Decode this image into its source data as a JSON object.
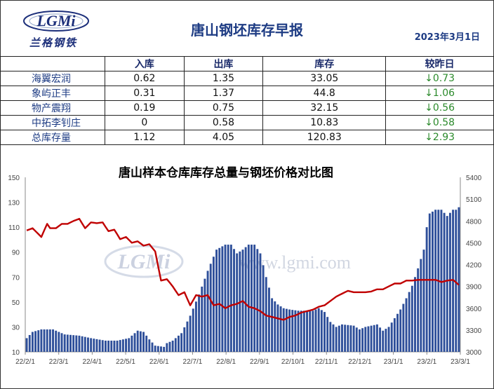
{
  "header": {
    "logo_word": "LGMi",
    "logo_text": "兰格钢铁",
    "title": "唐山钢坯库存早报",
    "date": "2023年3月1日"
  },
  "table": {
    "columns": [
      "入库",
      "出库",
      "库存",
      "较昨日"
    ],
    "rows": [
      {
        "name": "海翼宏润",
        "in": "0.62",
        "out": "1.35",
        "stock": "33.05",
        "change": "↓0.73"
      },
      {
        "name": "象屿正丰",
        "in": "0.31",
        "out": "1.37",
        "stock": "44.8",
        "change": "↓1.06"
      },
      {
        "name": "物产震翔",
        "in": "0.19",
        "out": "0.75",
        "stock": "32.15",
        "change": "↓0.56"
      },
      {
        "name": "中拓李钊庄",
        "in": "0",
        "out": "0.58",
        "stock": "10.83",
        "change": "↓0.58"
      },
      {
        "name": "总库存量",
        "in": "1.12",
        "out": "4.05",
        "stock": "120.83",
        "change": "↓2.93"
      }
    ]
  },
  "watermark": "www.lgmi.com",
  "colors": {
    "bar": "#2e4f9a",
    "line": "#c00000",
    "title": "#1e3c84",
    "change": "#2b8a2b"
  },
  "chart_data": {
    "type": "bar",
    "title": "唐山样本仓库库存总量与钢坯价格对比图",
    "left_axis": {
      "ylim": [
        10,
        150
      ],
      "ticks": [
        10,
        30,
        50,
        70,
        90,
        110,
        130,
        150
      ]
    },
    "right_axis": {
      "ylim": [
        3000,
        5400
      ],
      "ticks": [
        3000,
        3300,
        3600,
        3900,
        4200,
        4500,
        4800,
        5100,
        5400
      ]
    },
    "x_ticks": [
      "22/2/1",
      "22/3/1",
      "22/4/1",
      "22/5/1",
      "22/6/1",
      "22/7/1",
      "22/8/1",
      "22/9/1",
      "22/10/1",
      "22/11/1",
      "22/12/1",
      "23/1/1",
      "23/2/1",
      "23/3/1"
    ],
    "inventory_keypoints": [
      [
        0,
        21
      ],
      [
        2,
        26
      ],
      [
        5,
        28
      ],
      [
        9,
        28
      ],
      [
        13,
        24
      ],
      [
        18,
        23
      ],
      [
        22,
        21
      ],
      [
        27,
        19
      ],
      [
        31,
        19
      ],
      [
        35,
        21
      ],
      [
        38,
        27
      ],
      [
        40,
        26
      ],
      [
        42,
        20
      ],
      [
        44,
        15
      ],
      [
        47,
        14
      ],
      [
        48,
        17
      ],
      [
        50,
        19
      ],
      [
        53,
        25
      ],
      [
        56,
        39
      ],
      [
        59,
        56
      ],
      [
        62,
        75
      ],
      [
        65,
        92
      ],
      [
        68,
        96
      ],
      [
        70,
        96
      ],
      [
        72,
        89
      ],
      [
        74,
        92
      ],
      [
        76,
        96
      ],
      [
        78,
        96
      ],
      [
        80,
        89
      ],
      [
        82,
        70
      ],
      [
        84,
        53
      ],
      [
        86,
        48
      ],
      [
        88,
        45
      ],
      [
        90,
        44
      ],
      [
        93,
        43
      ],
      [
        98,
        43
      ],
      [
        100,
        45
      ],
      [
        102,
        42
      ],
      [
        104,
        34
      ],
      [
        106,
        30
      ],
      [
        108,
        32
      ],
      [
        112,
        31
      ],
      [
        114,
        28
      ],
      [
        116,
        30
      ],
      [
        118,
        31
      ],
      [
        120,
        32
      ],
      [
        122,
        27
      ],
      [
        124,
        30
      ],
      [
        126,
        37
      ],
      [
        128,
        44
      ],
      [
        130,
        53
      ],
      [
        132,
        63
      ],
      [
        134,
        77
      ],
      [
        136,
        92
      ],
      [
        137,
        110
      ],
      [
        138,
        121
      ],
      [
        140,
        124
      ],
      [
        142,
        124
      ],
      [
        144,
        119
      ],
      [
        146,
        124
      ],
      [
        147,
        124
      ],
      [
        148,
        126
      ]
    ],
    "price_keypoints": [
      [
        0,
        4670
      ],
      [
        2,
        4700
      ],
      [
        3,
        4660
      ],
      [
        5,
        4580
      ],
      [
        7,
        4760
      ],
      [
        8,
        4700
      ],
      [
        10,
        4700
      ],
      [
        12,
        4760
      ],
      [
        14,
        4760
      ],
      [
        16,
        4800
      ],
      [
        18,
        4830
      ],
      [
        20,
        4700
      ],
      [
        22,
        4780
      ],
      [
        24,
        4770
      ],
      [
        26,
        4780
      ],
      [
        28,
        4660
      ],
      [
        30,
        4680
      ],
      [
        32,
        4550
      ],
      [
        34,
        4580
      ],
      [
        36,
        4500
      ],
      [
        38,
        4520
      ],
      [
        40,
        4460
      ],
      [
        42,
        4480
      ],
      [
        44,
        4380
      ],
      [
        46,
        3980
      ],
      [
        48,
        4000
      ],
      [
        50,
        3900
      ],
      [
        52,
        3780
      ],
      [
        54,
        3820
      ],
      [
        56,
        3640
      ],
      [
        58,
        3780
      ],
      [
        60,
        3760
      ],
      [
        62,
        3780
      ],
      [
        64,
        3640
      ],
      [
        66,
        3660
      ],
      [
        68,
        3600
      ],
      [
        70,
        3640
      ],
      [
        72,
        3660
      ],
      [
        74,
        3700
      ],
      [
        76,
        3620
      ],
      [
        78,
        3600
      ],
      [
        80,
        3560
      ],
      [
        82,
        3500
      ],
      [
        84,
        3480
      ],
      [
        86,
        3460
      ],
      [
        88,
        3440
      ],
      [
        90,
        3480
      ],
      [
        92,
        3500
      ],
      [
        94,
        3540
      ],
      [
        96,
        3560
      ],
      [
        98,
        3580
      ],
      [
        100,
        3620
      ],
      [
        102,
        3640
      ],
      [
        104,
        3700
      ],
      [
        106,
        3760
      ],
      [
        108,
        3800
      ],
      [
        110,
        3840
      ],
      [
        112,
        3820
      ],
      [
        114,
        3820
      ],
      [
        116,
        3820
      ],
      [
        118,
        3830
      ],
      [
        120,
        3860
      ],
      [
        122,
        3860
      ],
      [
        124,
        3900
      ],
      [
        126,
        3940
      ],
      [
        128,
        3940
      ],
      [
        130,
        3980
      ],
      [
        132,
        3980
      ],
      [
        134,
        3990
      ],
      [
        136,
        3990
      ],
      [
        138,
        3990
      ],
      [
        140,
        3990
      ],
      [
        142,
        3960
      ],
      [
        144,
        3980
      ],
      [
        146,
        3990
      ],
      [
        148,
        3920
      ]
    ]
  }
}
